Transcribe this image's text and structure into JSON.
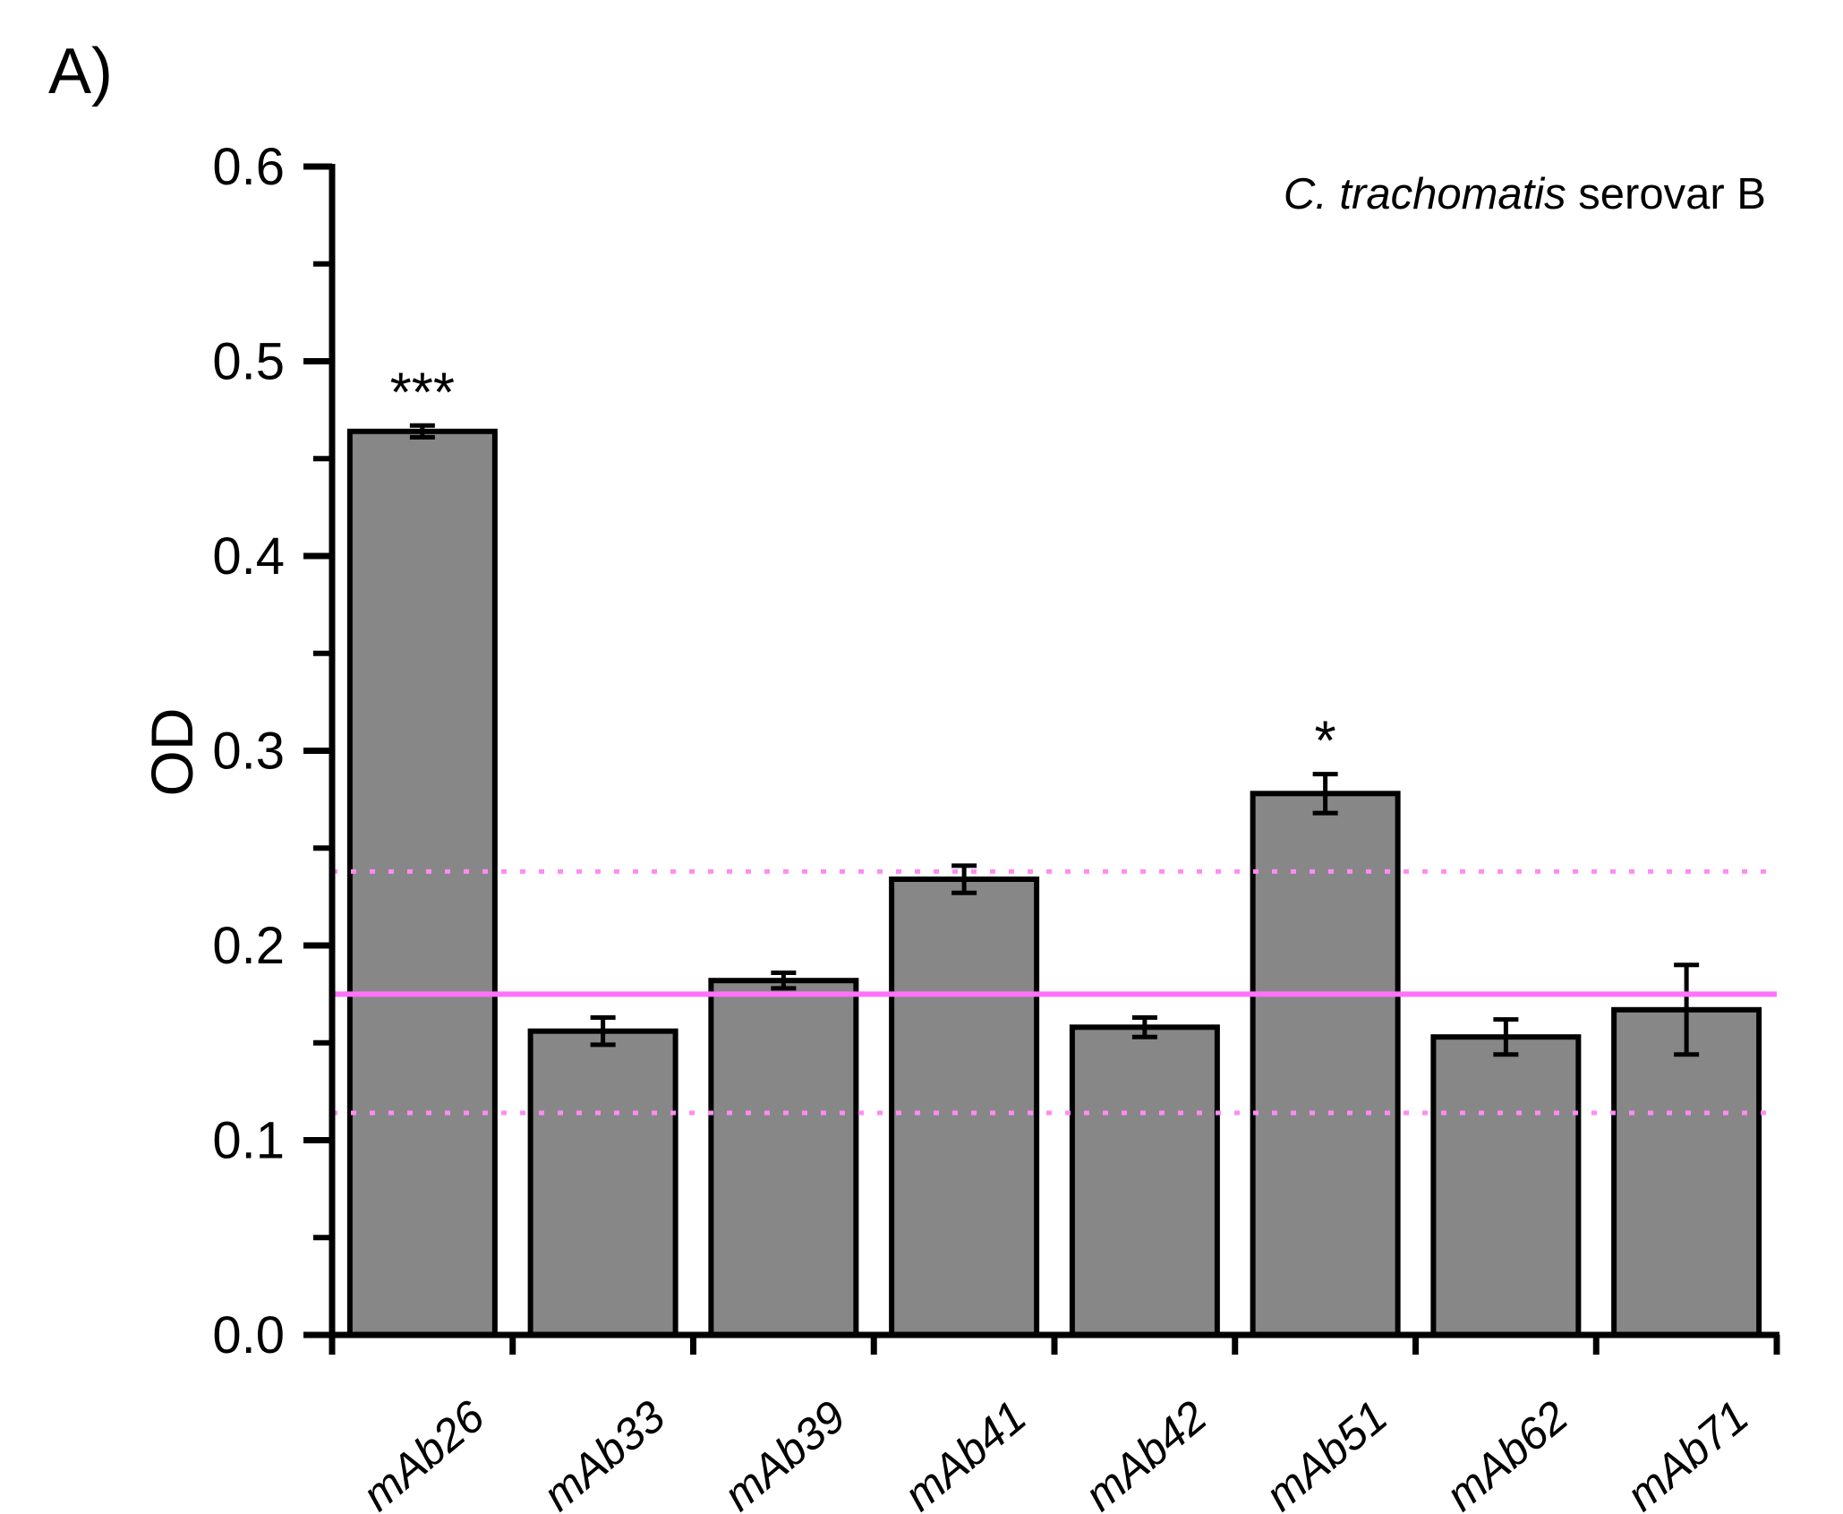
{
  "panel_label": "A)",
  "annotation": {
    "species_italic": "C. trachomatis",
    "rest": " serovar B"
  },
  "chart_data": {
    "type": "bar",
    "title": "C. trachomatis serovar B",
    "xlabel": "",
    "ylabel": "OD",
    "categories": [
      "mAb26",
      "mAb33",
      "mAb39",
      "mAb41",
      "mAb42",
      "mAb51",
      "mAb62",
      "mAb71"
    ],
    "values": [
      0.464,
      0.156,
      0.182,
      0.234,
      0.158,
      0.278,
      0.153,
      0.167
    ],
    "errors": [
      0.003,
      0.007,
      0.004,
      0.007,
      0.005,
      0.01,
      0.009,
      0.023
    ],
    "significance": [
      "***",
      "",
      "",
      "",
      "",
      "*",
      "",
      ""
    ],
    "ylim": [
      0.0,
      0.6
    ],
    "yticks": [
      {
        "value": 0.0,
        "label": "0.0"
      },
      {
        "value": 0.1,
        "label": "0.1"
      },
      {
        "value": 0.2,
        "label": "0.2"
      },
      {
        "value": 0.3,
        "label": "0.3"
      },
      {
        "value": 0.4,
        "label": "0.4"
      },
      {
        "value": 0.5,
        "label": "0.5"
      },
      {
        "value": 0.6,
        "label": "0.6"
      }
    ],
    "y_minor_step": 0.05,
    "grid": false,
    "legend": "none",
    "reference_lines": [
      {
        "value": 0.175,
        "style": "solid",
        "color": "#ff72f9",
        "name": "cutoff-mean"
      },
      {
        "value": 0.238,
        "style": "dotted",
        "color": "#ff8cf2",
        "name": "cutoff-upper"
      },
      {
        "value": 0.114,
        "style": "dotted",
        "color": "#ff8cf2",
        "name": "cutoff-lower"
      }
    ],
    "bar_fill": "#878787",
    "bar_border": "#000000",
    "error_bar_color": "#000000",
    "axis_color": "#000000"
  }
}
